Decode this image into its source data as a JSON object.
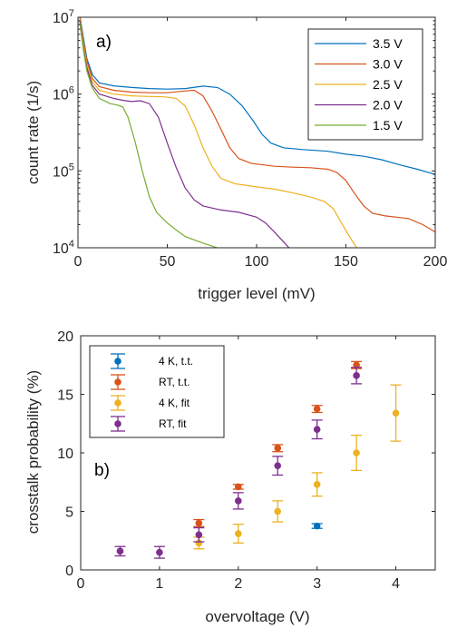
{
  "chart_data": [
    {
      "type": "line",
      "panel_label": "a)",
      "xlabel": "trigger level (mV)",
      "ylabel": "count rate (1/s)",
      "xlim": [
        0,
        200
      ],
      "ylim": [
        10000,
        10000000
      ],
      "yscale": "log",
      "grid": false,
      "legend_position": "top-right",
      "x_ticks": [
        {
          "v": 0,
          "label": "0"
        },
        {
          "v": 50,
          "label": "50"
        },
        {
          "v": 100,
          "label": "100"
        },
        {
          "v": 150,
          "label": "150"
        },
        {
          "v": 200,
          "label": "200"
        }
      ],
      "y_ticks": [
        {
          "v": 10000,
          "base": "10",
          "exp": "4"
        },
        {
          "v": 100000,
          "base": "10",
          "exp": "5"
        },
        {
          "v": 1000000,
          "base": "10",
          "exp": "6"
        },
        {
          "v": 10000000,
          "base": "10",
          "exp": "7"
        }
      ],
      "series": [
        {
          "name": "3.5 V",
          "color": "#0072BD",
          "points": [
            [
              1,
              10500000.0
            ],
            [
              3,
              5500000.0
            ],
            [
              5,
              2900000.0
            ],
            [
              8,
              1800000.0
            ],
            [
              12,
              1400000.0
            ],
            [
              20,
              1280000.0
            ],
            [
              30,
              1220000.0
            ],
            [
              40,
              1180000.0
            ],
            [
              50,
              1160000.0
            ],
            [
              60,
              1180000.0
            ],
            [
              70,
              1270000.0
            ],
            [
              78,
              1220000.0
            ],
            [
              85,
              1000000.0
            ],
            [
              92,
              700000.0
            ],
            [
              98,
              450000.0
            ],
            [
              103,
              300000.0
            ],
            [
              108,
              230000.0
            ],
            [
              115,
              200000.0
            ],
            [
              125,
              190000.0
            ],
            [
              140,
              180000.0
            ],
            [
              150,
              165000.0
            ],
            [
              160,
              155000.0
            ],
            [
              170,
              140000.0
            ],
            [
              180,
              120000.0
            ],
            [
              190,
              105000.0
            ],
            [
              200,
              90000.0
            ]
          ]
        },
        {
          "name": "3.0 V",
          "color": "#D95319",
          "points": [
            [
              1,
              10000000.0
            ],
            [
              3,
              5000000.0
            ],
            [
              5,
              2700000.0
            ],
            [
              8,
              1600000.0
            ],
            [
              12,
              1250000.0
            ],
            [
              20,
              1120000.0
            ],
            [
              30,
              1060000.0
            ],
            [
              40,
              1040000.0
            ],
            [
              50,
              1040000.0
            ],
            [
              60,
              1100000.0
            ],
            [
              65,
              1120000.0
            ],
            [
              70,
              950000.0
            ],
            [
              75,
              600000.0
            ],
            [
              80,
              350000.0
            ],
            [
              85,
              200000.0
            ],
            [
              90,
              145000.0
            ],
            [
              97,
              125000.0
            ],
            [
              110,
              115000.0
            ],
            [
              120,
              112000.0
            ],
            [
              130,
              110000.0
            ],
            [
              140,
              105000.0
            ],
            [
              145,
              95000.0
            ],
            [
              150,
              75000.0
            ],
            [
              155,
              50000.0
            ],
            [
              160,
              35000.0
            ],
            [
              165,
              28000.0
            ],
            [
              172,
              26000.0
            ],
            [
              185,
              24000.0
            ],
            [
              193,
              20000.0
            ],
            [
              200,
              16000.0
            ]
          ]
        },
        {
          "name": "2.5 V",
          "color": "#EDB120",
          "points": [
            [
              1,
              9500000.0
            ],
            [
              3,
              4500000.0
            ],
            [
              5,
              2400000.0
            ],
            [
              8,
              1450000.0
            ],
            [
              12,
              1120000.0
            ],
            [
              20,
              1000000.0
            ],
            [
              30,
              950000.0
            ],
            [
              40,
              930000.0
            ],
            [
              48,
              920000.0
            ],
            [
              55,
              880000.0
            ],
            [
              60,
              700000.0
            ],
            [
              65,
              400000.0
            ],
            [
              70,
              200000.0
            ],
            [
              75,
              115000.0
            ],
            [
              80,
              80000.0
            ],
            [
              88,
              68000.0
            ],
            [
              100,
              62000.0
            ],
            [
              110,
              58000.0
            ],
            [
              120,
              52000.0
            ],
            [
              130,
              46000.0
            ],
            [
              138,
              40000.0
            ],
            [
              143,
              32000.0
            ],
            [
              147,
              22000.0
            ],
            [
              152,
              14000.0
            ],
            [
              156,
              10000.0
            ],
            [
              160,
              8000.0
            ]
          ]
        },
        {
          "name": "2.0 V",
          "color": "#7E2F8E",
          "points": [
            [
              1,
              9000000.0
            ],
            [
              3,
              4000000.0
            ],
            [
              5,
              2200000.0
            ],
            [
              8,
              1300000.0
            ],
            [
              12,
              1000000.0
            ],
            [
              20,
              880000.0
            ],
            [
              25,
              830000.0
            ],
            [
              30,
              800000.0
            ],
            [
              35,
              820000.0
            ],
            [
              40,
              750000.0
            ],
            [
              45,
              500000.0
            ],
            [
              50,
              230000.0
            ],
            [
              55,
              110000.0
            ],
            [
              60,
              60000.0
            ],
            [
              65,
              42000.0
            ],
            [
              70,
              35000.0
            ],
            [
              80,
              31000.0
            ],
            [
              90,
              29000.0
            ],
            [
              100,
              25000.0
            ],
            [
              105,
              21000.0
            ],
            [
              110,
              16000.0
            ],
            [
              115,
              12000.0
            ],
            [
              120,
              9000.0
            ]
          ]
        },
        {
          "name": "1.5 V",
          "color": "#77AC30",
          "points": [
            [
              1,
              8500000.0
            ],
            [
              3,
              3800000.0
            ],
            [
              5,
              2000000.0
            ],
            [
              8,
              1200000.0
            ],
            [
              12,
              880000.0
            ],
            [
              18,
              750000.0
            ],
            [
              22,
              720000.0
            ],
            [
              25,
              680000.0
            ],
            [
              28,
              500000.0
            ],
            [
              32,
              240000.0
            ],
            [
              36,
              100000.0
            ],
            [
              40,
              46000.0
            ],
            [
              44,
              29000.0
            ],
            [
              50,
              21000.0
            ],
            [
              55,
              17000.0
            ],
            [
              60,
              14000.0
            ],
            [
              70,
              11500.0
            ],
            [
              78,
              10000.0
            ],
            [
              85,
              8500.0
            ]
          ]
        }
      ]
    },
    {
      "type": "scatter",
      "panel_label": "b)",
      "xlabel": "overvoltage (V)",
      "ylabel": "crosstalk probability (%)",
      "xlim": [
        0,
        4.5
      ],
      "ylim": [
        0,
        20
      ],
      "grid": false,
      "legend_position": "top-left",
      "x_ticks": [
        0,
        1,
        2,
        3,
        4
      ],
      "y_ticks": [
        0,
        5,
        10,
        15,
        20
      ],
      "series": [
        {
          "name": "4 K, t.t.",
          "color": "#0072BD",
          "points": [
            {
              "x": 3.0,
              "y": 3.75,
              "err": 0.2
            }
          ]
        },
        {
          "name": "RT, t.t.",
          "color": "#D95319",
          "points": [
            {
              "x": 1.5,
              "y": 4.0,
              "err": 0.3
            },
            {
              "x": 2.0,
              "y": 7.1,
              "err": 0.2
            },
            {
              "x": 2.5,
              "y": 10.4,
              "err": 0.3
            },
            {
              "x": 3.0,
              "y": 13.75,
              "err": 0.3
            },
            {
              "x": 3.5,
              "y": 17.5,
              "err": 0.3
            }
          ]
        },
        {
          "name": "4 K, fit",
          "color": "#EDB120",
          "points": [
            {
              "x": 1.5,
              "y": 2.3,
              "err": 0.5
            },
            {
              "x": 2.0,
              "y": 3.1,
              "err": 0.8
            },
            {
              "x": 2.5,
              "y": 5.0,
              "err": 0.9
            },
            {
              "x": 3.0,
              "y": 7.3,
              "err": 1.0
            },
            {
              "x": 3.5,
              "y": 10.0,
              "err": 1.5
            },
            {
              "x": 4.0,
              "y": 13.4,
              "err": 2.4
            }
          ]
        },
        {
          "name": "RT, fit",
          "color": "#7E2F8E",
          "points": [
            {
              "x": 0.5,
              "y": 1.6,
              "err": 0.4
            },
            {
              "x": 1.0,
              "y": 1.5,
              "err": 0.5
            },
            {
              "x": 1.5,
              "y": 3.0,
              "err": 0.6
            },
            {
              "x": 2.0,
              "y": 5.9,
              "err": 0.7
            },
            {
              "x": 2.5,
              "y": 8.9,
              "err": 0.8
            },
            {
              "x": 3.0,
              "y": 12.0,
              "err": 0.8
            },
            {
              "x": 3.5,
              "y": 16.6,
              "err": 0.7
            }
          ]
        }
      ]
    }
  ]
}
